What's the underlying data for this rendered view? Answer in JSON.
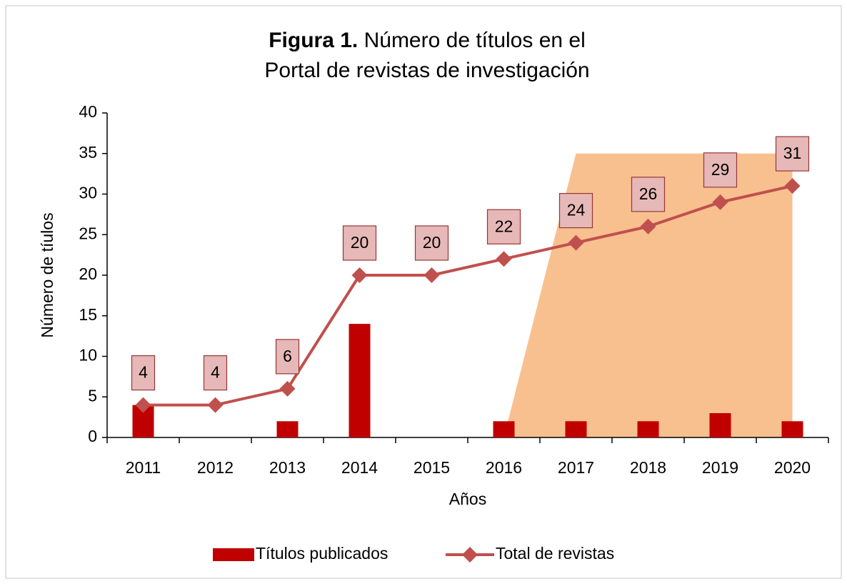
{
  "chart_data": {
    "type": "bar_line",
    "title_prefix": "Figura 1.",
    "title_lines": [
      "Número de títulos en el",
      "Portal de revistas de investigación"
    ],
    "x_label": "Años",
    "y_label": "Número de tíulos",
    "categories": [
      "2011",
      "2012",
      "2013",
      "2014",
      "2015",
      "2016",
      "2017",
      "2018",
      "2019",
      "2020"
    ],
    "series": [
      {
        "name": "Títulos publicados",
        "type": "bar",
        "color": "#c00000",
        "values": [
          4,
          0,
          2,
          14,
          0,
          2,
          2,
          2,
          3,
          2
        ]
      },
      {
        "name": "Total de revistas",
        "type": "line",
        "color": "#c0504d",
        "values": [
          4,
          4,
          6,
          20,
          20,
          22,
          24,
          26,
          29,
          31
        ]
      }
    ],
    "highlight_area": {
      "color": "#f9c08f",
      "values": [
        null,
        null,
        null,
        null,
        null,
        0,
        35,
        35,
        35,
        35
      ]
    },
    "ylim": [
      0,
      40
    ],
    "yticks": [
      0,
      5,
      10,
      15,
      20,
      25,
      30,
      35,
      40
    ],
    "legend": "bottom"
  }
}
